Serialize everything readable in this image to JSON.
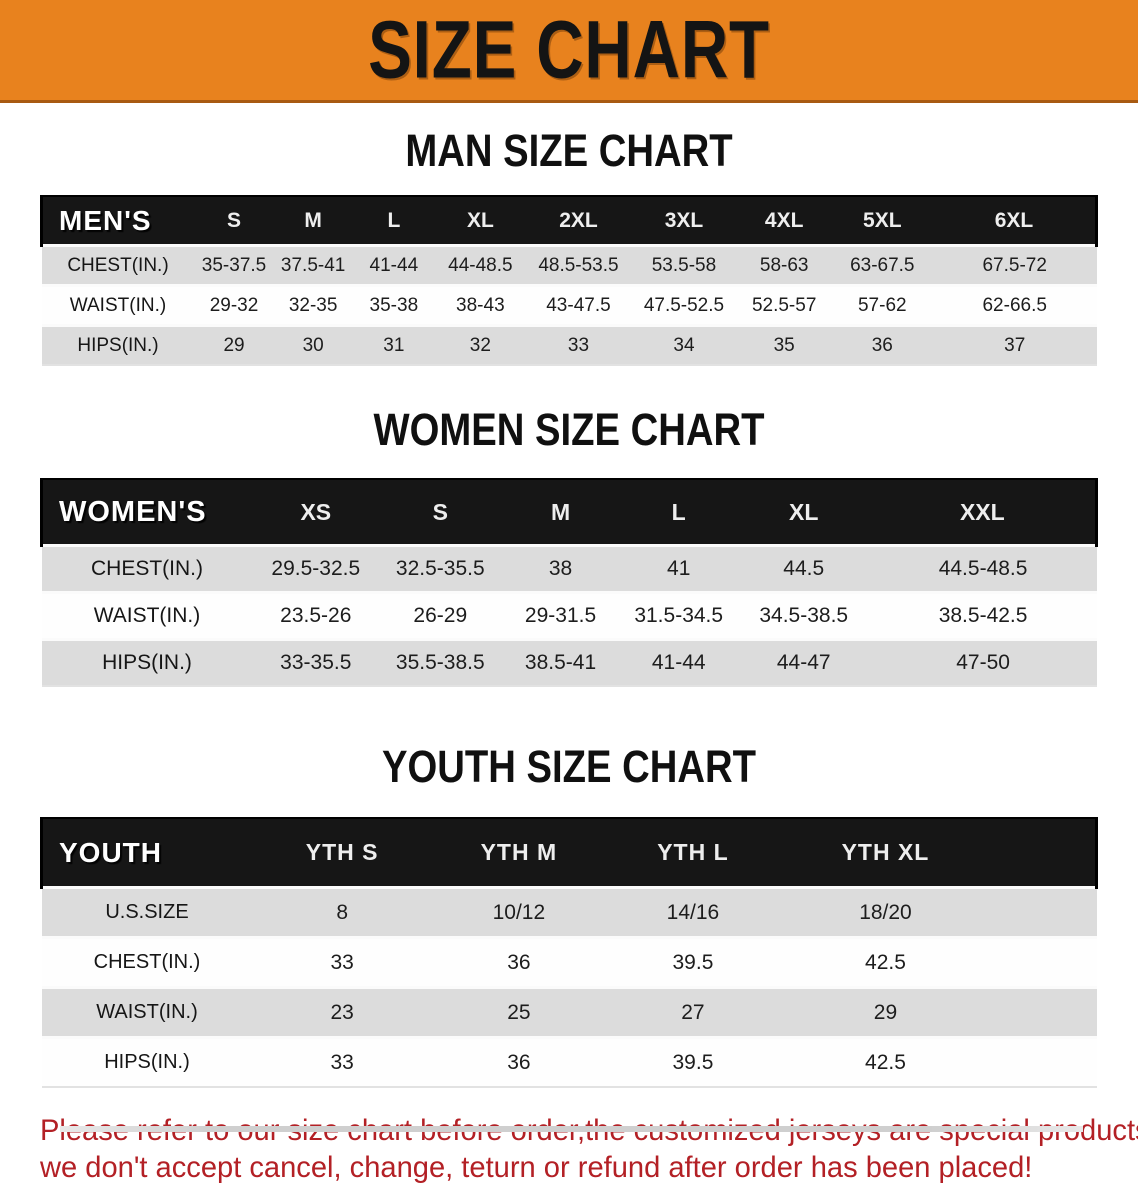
{
  "banner": {
    "title": "SIZE CHART",
    "bg_color": "#E8821E",
    "edge_color": "#A85A12",
    "text_color": "#141414"
  },
  "colors": {
    "header_bar": "#161616",
    "row_shaded": "#DCDCDC",
    "disclaimer_red": "#B32025"
  },
  "sections": {
    "men": {
      "heading": "MAN SIZE CHART",
      "corner": "MEN'S",
      "columns": [
        "S",
        "M",
        "L",
        "XL",
        "2XL",
        "3XL",
        "4XL",
        "5XL",
        "6XL"
      ],
      "rows": [
        {
          "label": "CHEST(IN.)",
          "values": [
            "35-37.5",
            "37.5-41",
            "41-44",
            "44-48.5",
            "48.5-53.5",
            "53.5-58",
            "58-63",
            "63-67.5",
            "67.5-72"
          ]
        },
        {
          "label": "WAIST(IN.)",
          "values": [
            "29-32",
            "32-35",
            "35-38",
            "38-43",
            "43-47.5",
            "47.5-52.5",
            "52.5-57",
            "57-62",
            "62-66.5"
          ]
        },
        {
          "label": "HIPS(IN.)",
          "values": [
            "29",
            "30",
            "31",
            "32",
            "33",
            "34",
            "35",
            "36",
            "37"
          ]
        }
      ]
    },
    "women": {
      "heading": "WOMEN SIZE CHART",
      "corner": "WOMEN'S",
      "columns": [
        "XS",
        "S",
        "M",
        "L",
        "XL",
        "XXL"
      ],
      "rows": [
        {
          "label": "CHEST(IN.)",
          "values": [
            "29.5-32.5",
            "32.5-35.5",
            "38",
            "41",
            "44.5",
            "44.5-48.5"
          ]
        },
        {
          "label": "WAIST(IN.)",
          "values": [
            "23.5-26",
            "26-29",
            "29-31.5",
            "31.5-34.5",
            "34.5-38.5",
            "38.5-42.5"
          ]
        },
        {
          "label": "HIPS(IN.)",
          "values": [
            "33-35.5",
            "35.5-38.5",
            "38.5-41",
            "41-44",
            "44-47",
            "47-50"
          ]
        }
      ]
    },
    "youth": {
      "heading": "YOUTH SIZE CHART",
      "corner": "YOUTH",
      "columns": [
        "YTH S",
        "YTH M",
        "YTH L",
        "YTH XL"
      ],
      "rows": [
        {
          "label": "U.S.SIZE",
          "values": [
            "8",
            "10/12",
            "14/16",
            "18/20"
          ]
        },
        {
          "label": "CHEST(IN.)",
          "values": [
            "33",
            "36",
            "39.5",
            "42.5"
          ]
        },
        {
          "label": "WAIST(IN.)",
          "values": [
            "23",
            "25",
            "27",
            "29"
          ]
        },
        {
          "label": "HIPS(IN.)",
          "values": [
            "33",
            "36",
            "39.5",
            "42.5"
          ]
        }
      ]
    }
  },
  "disclaimer": {
    "line1": "Please refer to our size chart before order,the customized jerseys are special products,",
    "line2": "we don't accept cancel, change, teturn or refund after order has been placed!"
  }
}
